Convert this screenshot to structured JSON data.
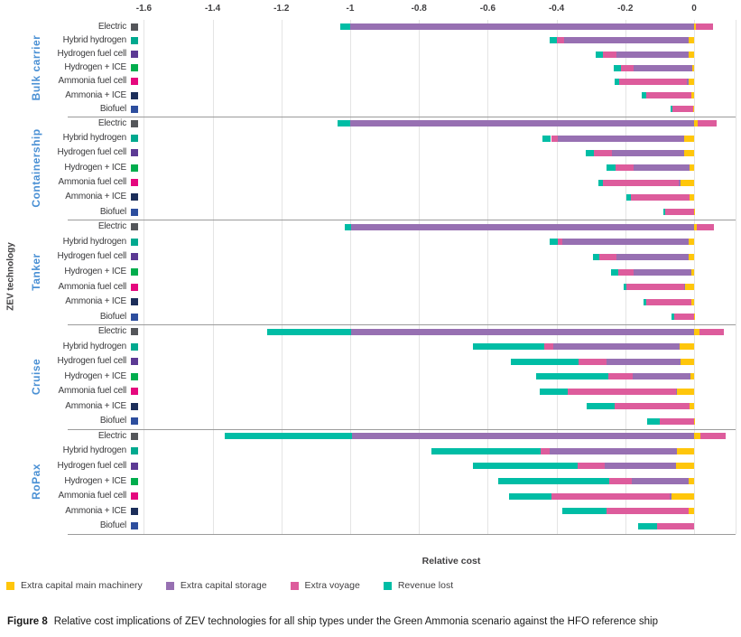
{
  "axis": {
    "xlabel": "Relative cost",
    "ylabel": "ZEV technology",
    "tick_labels": [
      "-1.6",
      "-1.4",
      "-1.2",
      "-1",
      "-0.8",
      "-0.6",
      "-0.4",
      "-0.2",
      "0"
    ],
    "tick_values": [
      -1.6,
      -1.4,
      -1.2,
      -1.0,
      -0.8,
      -0.6,
      -0.4,
      -0.2,
      0
    ]
  },
  "legend": [
    {
      "name": "machinery",
      "label": "Extra capital main machinery",
      "color": "#FFC60B"
    },
    {
      "name": "storage",
      "label": "Extra capital storage",
      "color": "#9770B2"
    },
    {
      "name": "voyage",
      "label": "Extra voyage",
      "color": "#DD5C9C"
    },
    {
      "name": "revenue",
      "label": "Revenue lost",
      "color": "#00BDA5"
    }
  ],
  "caption": {
    "label": "Figure 8",
    "text": "Relative cost implications of ZEV technologies for all ship types under the Green Ammonia scenario against the HFO reference ship"
  },
  "chart_data": {
    "type": "bar",
    "orientation": "horizontal-stacked",
    "title": "",
    "xlabel": "Relative cost",
    "ylabel": "ZEV technology",
    "xlim": [
      -1.65,
      0.13
    ],
    "grid": "vertical",
    "legend_position": "bottom",
    "stack_order": [
      "machinery",
      "storage",
      "voyage",
      "revenue"
    ],
    "series_colors": {
      "machinery": "#FFC60B",
      "storage": "#9770B2",
      "voyage": "#DD5C9C",
      "revenue": "#00BDA5"
    },
    "technology_marker_colors": {
      "Electric": "#54565A",
      "Hybrid hydrogen": "#00A98F",
      "Hydrogen fuel cell": "#5C3A94",
      "Hydrogen + ICE": "#00AD4D",
      "Ammonia fuel cell": "#E5087E",
      "Ammonia + ICE": "#1C2E5A",
      "Biofuel": "#2D4E9E"
    },
    "group_label_color": "#4A90D4",
    "groups": [
      {
        "name": "Bulk carrier",
        "rows": [
          {
            "tech": "Electric",
            "values": {
              "machinery": 0.005,
              "storage": -1.0,
              "voyage": 0.05,
              "revenue": -0.028
            }
          },
          {
            "tech": "Hybrid hydrogen",
            "values": {
              "machinery": -0.017,
              "storage": -0.362,
              "voyage": -0.021,
              "revenue": -0.019
            }
          },
          {
            "tech": "Hydrogen fuel cell",
            "values": {
              "machinery": -0.017,
              "storage": -0.209,
              "voyage": -0.04,
              "revenue": -0.021
            }
          },
          {
            "tech": "Hydrogen + ICE",
            "values": {
              "machinery": -0.005,
              "storage": -0.17,
              "voyage": -0.037,
              "revenue": -0.021
            }
          },
          {
            "tech": "Ammonia fuel cell",
            "values": {
              "machinery": -0.016,
              "storage": -0.005,
              "voyage": -0.196,
              "revenue": -0.013
            }
          },
          {
            "tech": "Ammonia + ICE",
            "values": {
              "machinery": -0.008,
              "storage": 0,
              "voyage": -0.132,
              "revenue": -0.011
            }
          },
          {
            "tech": "Biofuel",
            "values": {
              "machinery": -0.002,
              "storage": 0,
              "voyage": -0.061,
              "revenue": -0.006
            }
          }
        ]
      },
      {
        "name": "Containership",
        "rows": [
          {
            "tech": "Electric",
            "values": {
              "machinery": 0.01,
              "storage": -1.0,
              "voyage": 0.055,
              "revenue": -0.037
            }
          },
          {
            "tech": "Hybrid hydrogen",
            "values": {
              "machinery": -0.029,
              "storage": -0.367,
              "voyage": -0.02,
              "revenue": -0.026
            }
          },
          {
            "tech": "Hydrogen fuel cell",
            "values": {
              "machinery": -0.029,
              "storage": -0.209,
              "voyage": -0.053,
              "revenue": -0.024
            }
          },
          {
            "tech": "Hydrogen + ICE",
            "values": {
              "machinery": -0.013,
              "storage": -0.164,
              "voyage": -0.052,
              "revenue": -0.026
            }
          },
          {
            "tech": "Ammonia fuel cell",
            "values": {
              "machinery": -0.04,
              "storage": -0.004,
              "voyage": -0.222,
              "revenue": -0.011
            }
          },
          {
            "tech": "Ammonia + ICE",
            "values": {
              "machinery": -0.013,
              "storage": 0,
              "voyage": -0.172,
              "revenue": -0.011
            }
          },
          {
            "tech": "Biofuel",
            "values": {
              "machinery": -0.001,
              "storage": 0,
              "voyage": -0.082,
              "revenue": -0.005
            }
          }
        ]
      },
      {
        "name": "Tanker",
        "rows": [
          {
            "tech": "Electric",
            "values": {
              "machinery": 0.008,
              "storage": -0.997,
              "voyage": 0.05,
              "revenue": -0.02
            }
          },
          {
            "tech": "Hybrid hydrogen",
            "values": {
              "machinery": -0.017,
              "storage": -0.365,
              "voyage": -0.014,
              "revenue": -0.024
            }
          },
          {
            "tech": "Hydrogen fuel cell",
            "values": {
              "machinery": -0.017,
              "storage": -0.209,
              "voyage": -0.05,
              "revenue": -0.019
            }
          },
          {
            "tech": "Hydrogen + ICE",
            "values": {
              "machinery": -0.008,
              "storage": -0.167,
              "voyage": -0.045,
              "revenue": -0.021
            }
          },
          {
            "tech": "Ammonia fuel cell",
            "values": {
              "machinery": -0.026,
              "storage": -0.003,
              "voyage": -0.167,
              "revenue": -0.008
            }
          },
          {
            "tech": "Ammonia + ICE",
            "values": {
              "machinery": -0.008,
              "storage": 0,
              "voyage": -0.13,
              "revenue": -0.008
            }
          },
          {
            "tech": "Biofuel",
            "values": {
              "machinery": -0.001,
              "storage": 0,
              "voyage": -0.058,
              "revenue": -0.006
            }
          }
        ]
      },
      {
        "name": "Cruise",
        "rows": [
          {
            "tech": "Electric",
            "values": {
              "machinery": 0.017,
              "storage": -0.997,
              "voyage": 0.07,
              "revenue": -0.245
            }
          },
          {
            "tech": "Hybrid hydrogen",
            "values": {
              "machinery": -0.042,
              "storage": -0.368,
              "voyage": -0.026,
              "revenue": -0.208
            }
          },
          {
            "tech": "Hydrogen fuel cell",
            "values": {
              "machinery": -0.04,
              "storage": -0.215,
              "voyage": -0.08,
              "revenue": -0.198
            }
          },
          {
            "tech": "Hydrogen + ICE",
            "values": {
              "machinery": -0.011,
              "storage": -0.168,
              "voyage": -0.071,
              "revenue": -0.21
            }
          },
          {
            "tech": "Ammonia fuel cell",
            "values": {
              "machinery": -0.049,
              "storage": -0.004,
              "voyage": -0.315,
              "revenue": -0.082
            }
          },
          {
            "tech": "Ammonia + ICE",
            "values": {
              "machinery": -0.012,
              "storage": 0,
              "voyage": -0.219,
              "revenue": -0.082
            }
          },
          {
            "tech": "Biofuel",
            "values": {
              "machinery": -0.001,
              "storage": 0,
              "voyage": -0.098,
              "revenue": -0.037
            }
          }
        ]
      },
      {
        "name": "RoPax",
        "rows": [
          {
            "tech": "Electric",
            "values": {
              "machinery": 0.018,
              "storage": -0.995,
              "voyage": 0.073,
              "revenue": -0.369
            }
          },
          {
            "tech": "Hybrid hydrogen",
            "values": {
              "machinery": -0.05,
              "storage": -0.369,
              "voyage": -0.027,
              "revenue": -0.317
            }
          },
          {
            "tech": "Hydrogen fuel cell",
            "values": {
              "machinery": -0.052,
              "storage": -0.209,
              "voyage": -0.077,
              "revenue": -0.305
            }
          },
          {
            "tech": "Hydrogen + ICE",
            "values": {
              "machinery": -0.016,
              "storage": -0.166,
              "voyage": -0.065,
              "revenue": -0.323
            }
          },
          {
            "tech": "Ammonia fuel cell",
            "values": {
              "machinery": -0.066,
              "storage": -0.004,
              "voyage": -0.344,
              "revenue": -0.125
            }
          },
          {
            "tech": "Ammonia + ICE",
            "values": {
              "machinery": -0.015,
              "storage": 0,
              "voyage": -0.239,
              "revenue": -0.128
            }
          },
          {
            "tech": "Biofuel",
            "values": {
              "machinery": 0,
              "storage": 0,
              "voyage": -0.107,
              "revenue": -0.057
            }
          }
        ]
      }
    ]
  }
}
